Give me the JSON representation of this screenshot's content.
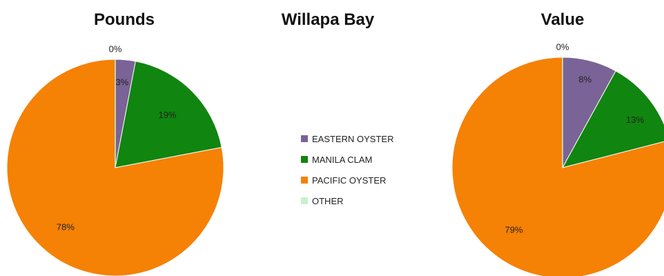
{
  "page_title": "Willapa Bay",
  "legend": [
    {
      "label": "EASTERN OYSTER",
      "color": "#7a6396"
    },
    {
      "label": "MANILA CLAM",
      "color": "#108510"
    },
    {
      "label": "PACIFIC OYSTER",
      "color": "#f58105"
    },
    {
      "label": "OTHER",
      "color": "#c9f2cc"
    }
  ],
  "chart_data": [
    {
      "type": "pie",
      "title": "Pounds",
      "categories": [
        "EASTERN OYSTER",
        "MANILA CLAM",
        "PACIFIC OYSTER",
        "OTHER"
      ],
      "values": [
        3,
        19,
        78,
        0
      ],
      "labels": [
        "3%",
        "19%",
        "78%",
        "0%"
      ]
    },
    {
      "type": "pie",
      "title": "Value",
      "categories": [
        "EASTERN OYSTER",
        "MANILA CLAM",
        "PACIFIC OYSTER",
        "OTHER"
      ],
      "values": [
        8,
        13,
        79,
        0
      ],
      "labels": [
        "8%",
        "13%",
        "79%",
        "0%"
      ]
    }
  ]
}
